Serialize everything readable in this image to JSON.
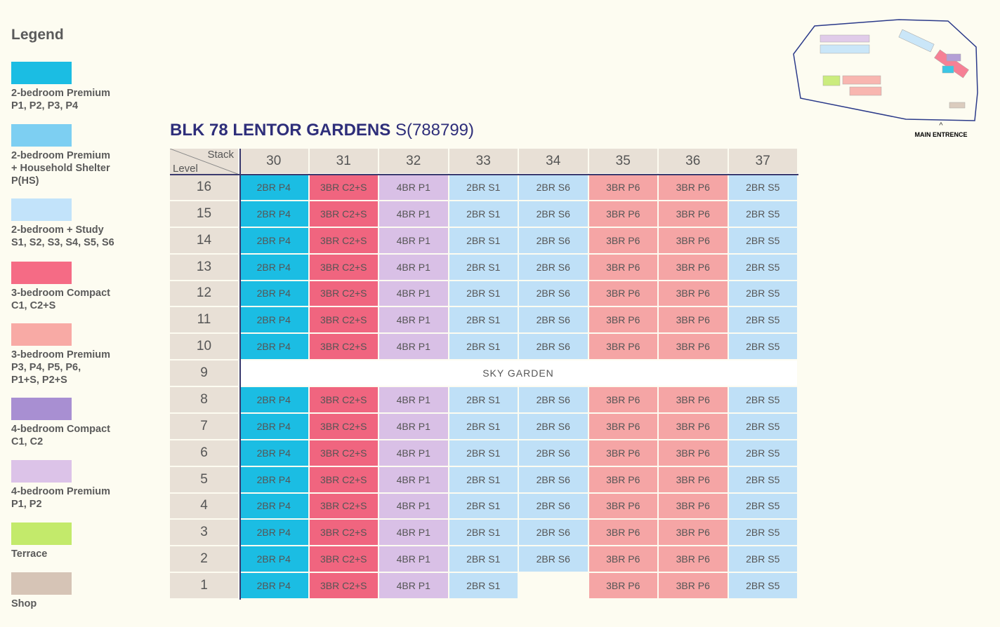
{
  "legend": {
    "title": "Legend",
    "items": [
      {
        "color": "#1bbde3",
        "lines": [
          "2-bedroom Premium",
          "P1, P2, P3, P4"
        ]
      },
      {
        "color": "#7dcff2",
        "lines": [
          "2-bedroom Premium",
          "+ Household Shelter",
          "P(HS)"
        ]
      },
      {
        "color": "#c2e3fa",
        "lines": [
          "2-bedroom + Study",
          "S1, S2, S3, S4, S5, S6"
        ]
      },
      {
        "color": "#f56b85",
        "lines": [
          "3-bedroom Compact",
          "C1, C2+S"
        ]
      },
      {
        "color": "#f8aaa5",
        "lines": [
          "3-bedroom Premium",
          "P3, P4, P5, P6,",
          "P1+S, P2+S"
        ]
      },
      {
        "color": "#a88fd2",
        "lines": [
          "4-bedroom Compact",
          "C1, C2"
        ]
      },
      {
        "color": "#dcc3e8",
        "lines": [
          "4-bedroom Premium",
          "P1, P2"
        ]
      },
      {
        "color": "#c3ea6b",
        "lines": [
          "Terrace"
        ]
      },
      {
        "color": "#d6c4b6",
        "lines": [
          "Shop"
        ]
      }
    ]
  },
  "header": {
    "title": "BLK 78 LENTOR GARDENS",
    "postal": "S(788799)"
  },
  "site_plan": {
    "entrance": "MAIN ENTRENCE"
  },
  "table": {
    "corner_stack": "Stack",
    "corner_level": "Level",
    "stacks": [
      {
        "label": 30,
        "color": "#1bbde3"
      },
      {
        "label": 31,
        "color": "#f0657f"
      },
      {
        "label": 32,
        "color": "#d9c0e6"
      },
      {
        "label": 33,
        "color": "#bfe0f7"
      },
      {
        "label": 34,
        "color": "#bfe0f7"
      },
      {
        "label": 35,
        "color": "#f5a5a5"
      },
      {
        "label": 36,
        "color": "#f5a5a5"
      },
      {
        "label": 37,
        "color": "#bfe0f7"
      }
    ],
    "rows": [
      {
        "level": 16,
        "units": [
          "2BR P4",
          "3BR C2+S",
          "4BR P1",
          "2BR S1",
          "2BR S6",
          "3BR P6",
          "3BR P6",
          "2BR S5"
        ]
      },
      {
        "level": 15,
        "units": [
          "2BR P4",
          "3BR C2+S",
          "4BR P1",
          "2BR S1",
          "2BR S6",
          "3BR P6",
          "3BR P6",
          "2BR S5"
        ]
      },
      {
        "level": 14,
        "units": [
          "2BR P4",
          "3BR C2+S",
          "4BR P1",
          "2BR S1",
          "2BR S6",
          "3BR P6",
          "3BR P6",
          "2BR S5"
        ]
      },
      {
        "level": 13,
        "units": [
          "2BR P4",
          "3BR C2+S",
          "4BR P1",
          "2BR S1",
          "2BR S6",
          "3BR P6",
          "3BR P6",
          "2BR S5"
        ]
      },
      {
        "level": 12,
        "units": [
          "2BR P4",
          "3BR C2+S",
          "4BR P1",
          "2BR S1",
          "2BR S6",
          "3BR P6",
          "3BR P6",
          "2BR S5"
        ]
      },
      {
        "level": 11,
        "units": [
          "2BR P4",
          "3BR C2+S",
          "4BR P1",
          "2BR S1",
          "2BR S6",
          "3BR P6",
          "3BR P6",
          "2BR S5"
        ]
      },
      {
        "level": 10,
        "units": [
          "2BR P4",
          "3BR C2+S",
          "4BR P1",
          "2BR S1",
          "2BR S6",
          "3BR P6",
          "3BR P6",
          "2BR S5"
        ]
      },
      {
        "level": 9,
        "note": "SKY GARDEN"
      },
      {
        "level": 8,
        "units": [
          "2BR P4",
          "3BR C2+S",
          "4BR P1",
          "2BR S1",
          "2BR S6",
          "3BR P6",
          "3BR P6",
          "2BR S5"
        ]
      },
      {
        "level": 7,
        "units": [
          "2BR P4",
          "3BR C2+S",
          "4BR P1",
          "2BR S1",
          "2BR S6",
          "3BR P6",
          "3BR P6",
          "2BR S5"
        ]
      },
      {
        "level": 6,
        "units": [
          "2BR P4",
          "3BR C2+S",
          "4BR P1",
          "2BR S1",
          "2BR S6",
          "3BR P6",
          "3BR P6",
          "2BR S5"
        ]
      },
      {
        "level": 5,
        "units": [
          "2BR P4",
          "3BR C2+S",
          "4BR P1",
          "2BR S1",
          "2BR S6",
          "3BR P6",
          "3BR P6",
          "2BR S5"
        ]
      },
      {
        "level": 4,
        "units": [
          "2BR P4",
          "3BR C2+S",
          "4BR P1",
          "2BR S1",
          "2BR S6",
          "3BR P6",
          "3BR P6",
          "2BR S5"
        ]
      },
      {
        "level": 3,
        "units": [
          "2BR P4",
          "3BR C2+S",
          "4BR P1",
          "2BR S1",
          "2BR S6",
          "3BR P6",
          "3BR P6",
          "2BR S5"
        ]
      },
      {
        "level": 2,
        "units": [
          "2BR P4",
          "3BR C2+S",
          "4BR P1",
          "2BR S1",
          "2BR S6",
          "3BR P6",
          "3BR P6",
          "2BR S5"
        ]
      },
      {
        "level": 1,
        "units": [
          "2BR P4",
          "3BR C2+S",
          "4BR P1",
          "2BR S1",
          null,
          "3BR P6",
          "3BR P6",
          "2BR S5"
        ]
      }
    ]
  }
}
